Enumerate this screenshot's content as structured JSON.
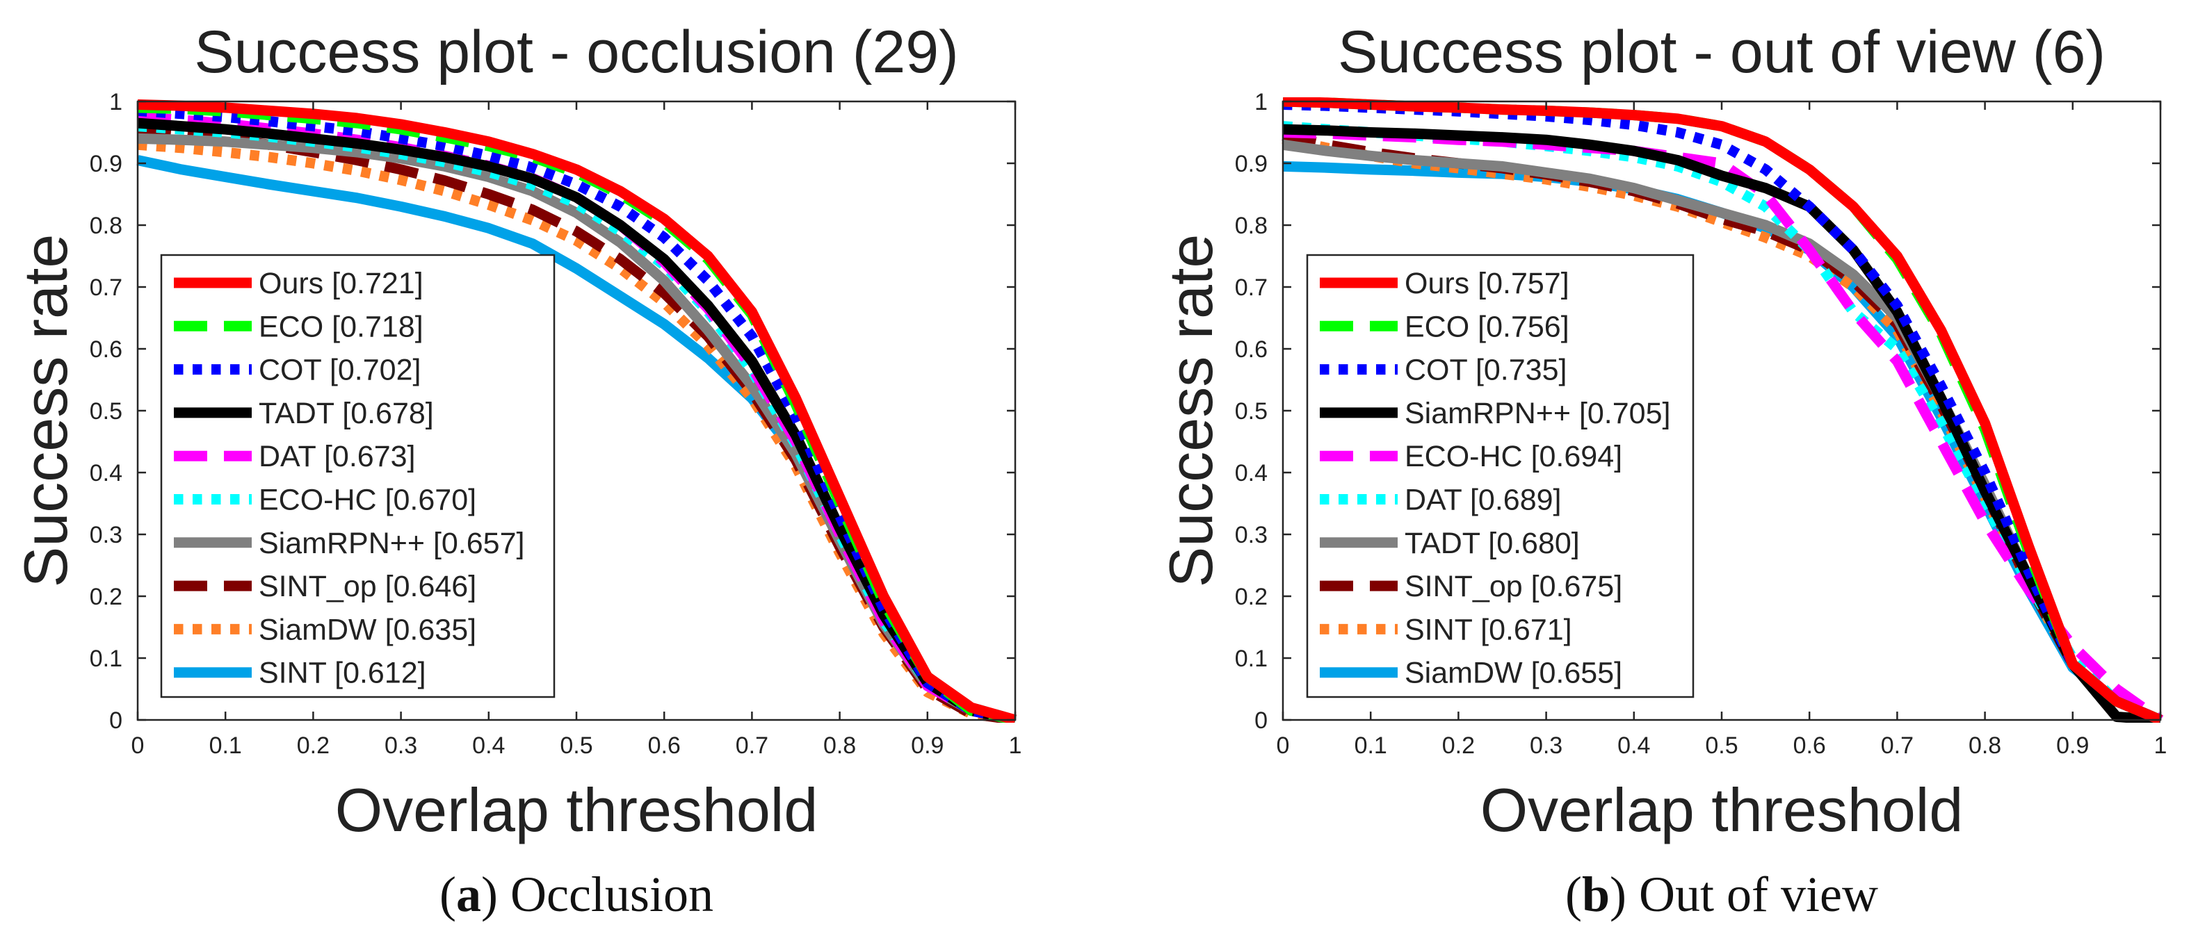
{
  "chart_data": [
    {
      "type": "line",
      "title": "Success plot - occlusion (29)",
      "xlabel": "Overlap threshold",
      "ylabel": "Success rate",
      "xlim": [
        0,
        1
      ],
      "ylim": [
        0,
        1
      ],
      "xticks": [
        "0",
        "0.1",
        "0.2",
        "0.3",
        "0.4",
        "0.5",
        "0.6",
        "0.7",
        "0.8",
        "0.9",
        "1"
      ],
      "yticks": [
        "0",
        "0.1",
        "0.2",
        "0.3",
        "0.4",
        "0.5",
        "0.6",
        "0.7",
        "0.8",
        "0.9",
        "1"
      ],
      "legend_position": "bottom-left",
      "caption_letter": "a",
      "caption_text": "Occlusion",
      "x": [
        0,
        0.05,
        0.1,
        0.15,
        0.2,
        0.25,
        0.3,
        0.35,
        0.4,
        0.45,
        0.5,
        0.55,
        0.6,
        0.65,
        0.7,
        0.75,
        0.8,
        0.85,
        0.9,
        0.95,
        1
      ],
      "series": [
        {
          "name": "Ours",
          "score": "[0.721]",
          "color": "#ff0000",
          "dash": "solid",
          "values": [
            0.995,
            0.993,
            0.99,
            0.985,
            0.98,
            0.973,
            0.963,
            0.95,
            0.935,
            0.915,
            0.89,
            0.855,
            0.81,
            0.75,
            0.66,
            0.52,
            0.36,
            0.2,
            0.07,
            0.02,
            0.0
          ]
        },
        {
          "name": "ECO",
          "score": "[0.718]",
          "color": "#00ff00",
          "dash": "dash",
          "values": [
            0.99,
            0.988,
            0.984,
            0.978,
            0.972,
            0.965,
            0.955,
            0.942,
            0.928,
            0.91,
            0.885,
            0.85,
            0.805,
            0.745,
            0.655,
            0.51,
            0.35,
            0.19,
            0.07,
            0.015,
            0.0
          ]
        },
        {
          "name": "COT",
          "score": "[0.702]",
          "color": "#0000ff",
          "dash": "dot",
          "values": [
            0.985,
            0.98,
            0.975,
            0.968,
            0.96,
            0.952,
            0.94,
            0.928,
            0.912,
            0.893,
            0.866,
            0.83,
            0.78,
            0.71,
            0.62,
            0.49,
            0.33,
            0.18,
            0.06,
            0.015,
            0.0
          ]
        },
        {
          "name": "TADT",
          "score": "[0.678]",
          "color": "#000000",
          "dash": "solid",
          "values": [
            0.965,
            0.96,
            0.955,
            0.948,
            0.94,
            0.932,
            0.922,
            0.91,
            0.895,
            0.875,
            0.845,
            0.8,
            0.745,
            0.67,
            0.58,
            0.46,
            0.31,
            0.17,
            0.06,
            0.015,
            0.0
          ]
        },
        {
          "name": "DAT",
          "score": "[0.673]",
          "color": "#ff00ff",
          "dash": "dash",
          "values": [
            0.975,
            0.97,
            0.964,
            0.956,
            0.948,
            0.938,
            0.926,
            0.912,
            0.896,
            0.876,
            0.845,
            0.8,
            0.74,
            0.665,
            0.57,
            0.45,
            0.3,
            0.16,
            0.055,
            0.015,
            0.0
          ]
        },
        {
          "name": "ECO-HC",
          "score": "[0.670]",
          "color": "#00ffff",
          "dash": "dot",
          "values": [
            0.96,
            0.955,
            0.95,
            0.943,
            0.935,
            0.926,
            0.915,
            0.902,
            0.886,
            0.865,
            0.835,
            0.79,
            0.735,
            0.66,
            0.565,
            0.445,
            0.3,
            0.16,
            0.06,
            0.02,
            0.0
          ]
        },
        {
          "name": "SiamRPN++",
          "score": "[0.657]",
          "color": "#808080",
          "dash": "solid",
          "values": [
            0.94,
            0.938,
            0.935,
            0.93,
            0.925,
            0.918,
            0.908,
            0.895,
            0.878,
            0.855,
            0.82,
            0.772,
            0.71,
            0.63,
            0.54,
            0.43,
            0.29,
            0.155,
            0.055,
            0.015,
            0.0
          ]
        },
        {
          "name": "SINT_op",
          "score": "[0.646]",
          "color": "#7f0000",
          "dash": "dash",
          "values": [
            0.955,
            0.948,
            0.94,
            0.93,
            0.918,
            0.905,
            0.89,
            0.872,
            0.85,
            0.825,
            0.79,
            0.745,
            0.69,
            0.62,
            0.53,
            0.42,
            0.28,
            0.15,
            0.05,
            0.01,
            0.0
          ]
        },
        {
          "name": "SiamDW",
          "score": "[0.635]",
          "color": "#ff7f27",
          "dash": "dot",
          "values": [
            0.93,
            0.925,
            0.918,
            0.91,
            0.9,
            0.888,
            0.873,
            0.855,
            0.833,
            0.808,
            0.775,
            0.73,
            0.675,
            0.605,
            0.52,
            0.41,
            0.27,
            0.14,
            0.045,
            0.01,
            0.0
          ]
        },
        {
          "name": "SINT",
          "score": "[0.612]",
          "color": "#00a2e8",
          "dash": "solid",
          "values": [
            0.905,
            0.89,
            0.878,
            0.866,
            0.855,
            0.844,
            0.83,
            0.814,
            0.795,
            0.77,
            0.73,
            0.685,
            0.64,
            0.585,
            0.52,
            0.43,
            0.3,
            0.16,
            0.055,
            0.015,
            0.0
          ]
        }
      ]
    },
    {
      "type": "line",
      "title": "Success plot - out of view (6)",
      "xlabel": "Overlap threshold",
      "ylabel": "Success rate",
      "xlim": [
        0,
        1
      ],
      "ylim": [
        0,
        1
      ],
      "xticks": [
        "0",
        "0.1",
        "0.2",
        "0.3",
        "0.4",
        "0.5",
        "0.6",
        "0.7",
        "0.8",
        "0.9",
        "1"
      ],
      "yticks": [
        "0",
        "0.1",
        "0.2",
        "0.3",
        "0.4",
        "0.5",
        "0.6",
        "0.7",
        "0.8",
        "0.9",
        "1"
      ],
      "legend_position": "bottom-left",
      "caption_letter": "b",
      "caption_text": "Out of view",
      "x": [
        0,
        0.05,
        0.1,
        0.15,
        0.2,
        0.25,
        0.3,
        0.35,
        0.4,
        0.45,
        0.5,
        0.55,
        0.6,
        0.65,
        0.7,
        0.75,
        0.8,
        0.85,
        0.9,
        0.95,
        1
      ],
      "series": [
        {
          "name": "Ours",
          "score": "[0.757]",
          "color": "#ff0000",
          "dash": "solid",
          "values": [
            1.0,
            0.998,
            0.995,
            0.992,
            0.99,
            0.987,
            0.985,
            0.982,
            0.978,
            0.972,
            0.96,
            0.935,
            0.89,
            0.83,
            0.75,
            0.63,
            0.48,
            0.28,
            0.09,
            0.03,
            0.0
          ]
        },
        {
          "name": "ECO",
          "score": "[0.756]",
          "color": "#00ff00",
          "dash": "dash",
          "values": [
            1.0,
            0.998,
            0.995,
            0.992,
            0.99,
            0.987,
            0.985,
            0.982,
            0.978,
            0.972,
            0.96,
            0.935,
            0.89,
            0.83,
            0.745,
            0.625,
            0.47,
            0.27,
            0.09,
            0.03,
            0.0
          ]
        },
        {
          "name": "COT",
          "score": "[0.735]",
          "color": "#0000ff",
          "dash": "dot",
          "values": [
            0.995,
            0.993,
            0.99,
            0.987,
            0.984,
            0.98,
            0.976,
            0.97,
            0.962,
            0.95,
            0.93,
            0.89,
            0.83,
            0.76,
            0.67,
            0.54,
            0.4,
            0.24,
            0.09,
            0.03,
            0.0
          ]
        },
        {
          "name": "SiamRPN++",
          "score": "[0.705]",
          "color": "#000000",
          "dash": "solid",
          "values": [
            0.955,
            0.953,
            0.95,
            0.948,
            0.945,
            0.942,
            0.938,
            0.93,
            0.92,
            0.905,
            0.88,
            0.86,
            0.83,
            0.76,
            0.66,
            0.52,
            0.37,
            0.23,
            0.09,
            0.005,
            0.0
          ]
        },
        {
          "name": "ECO-HC",
          "score": "[0.694]",
          "color": "#ff00ff",
          "dash": "dash",
          "values": [
            0.95,
            0.948,
            0.945,
            0.942,
            0.938,
            0.935,
            0.93,
            0.925,
            0.92,
            0.91,
            0.9,
            0.85,
            0.76,
            0.66,
            0.58,
            0.45,
            0.32,
            0.21,
            0.12,
            0.05,
            0.0
          ]
        },
        {
          "name": "DAT",
          "score": "[0.689]",
          "color": "#00ffff",
          "dash": "dot",
          "values": [
            0.96,
            0.955,
            0.95,
            0.945,
            0.94,
            0.935,
            0.928,
            0.92,
            0.91,
            0.895,
            0.87,
            0.83,
            0.76,
            0.66,
            0.6,
            0.48,
            0.35,
            0.22,
            0.1,
            0.03,
            0.0
          ]
        },
        {
          "name": "TADT",
          "score": "[0.680]",
          "color": "#808080",
          "dash": "solid",
          "values": [
            0.93,
            0.92,
            0.912,
            0.905,
            0.9,
            0.895,
            0.885,
            0.875,
            0.86,
            0.84,
            0.82,
            0.8,
            0.77,
            0.72,
            0.65,
            0.52,
            0.38,
            0.23,
            0.09,
            0.03,
            0.0
          ]
        },
        {
          "name": "SINT_op",
          "score": "[0.675]",
          "color": "#7f0000",
          "dash": "dash",
          "values": [
            0.945,
            0.93,
            0.918,
            0.908,
            0.9,
            0.892,
            0.882,
            0.87,
            0.855,
            0.835,
            0.81,
            0.79,
            0.76,
            0.71,
            0.64,
            0.51,
            0.37,
            0.22,
            0.09,
            0.03,
            0.0
          ]
        },
        {
          "name": "SINT",
          "score": "[0.671]",
          "color": "#ff7f27",
          "dash": "dot",
          "values": [
            0.94,
            0.925,
            0.912,
            0.9,
            0.892,
            0.883,
            0.874,
            0.862,
            0.848,
            0.83,
            0.805,
            0.78,
            0.75,
            0.7,
            0.63,
            0.5,
            0.36,
            0.22,
            0.09,
            0.03,
            0.0
          ]
        },
        {
          "name": "SiamDW",
          "score": "[0.655]",
          "color": "#00a2e8",
          "dash": "solid",
          "values": [
            0.895,
            0.893,
            0.89,
            0.888,
            0.885,
            0.883,
            0.878,
            0.87,
            0.858,
            0.842,
            0.82,
            0.795,
            0.76,
            0.7,
            0.62,
            0.49,
            0.35,
            0.21,
            0.085,
            0.03,
            0.0
          ]
        }
      ]
    }
  ]
}
